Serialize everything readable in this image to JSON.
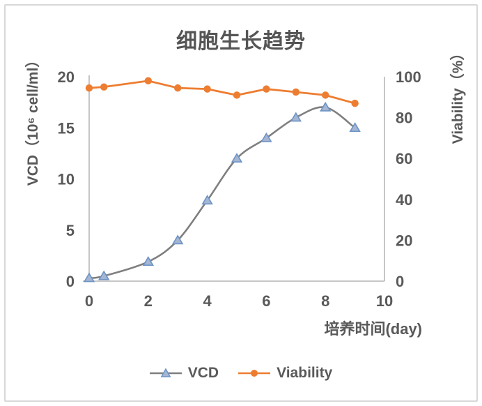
{
  "chart_data": {
    "type": "line",
    "title": "细胞生长趋势",
    "xlabel": "培养时间(day)",
    "ylabel_left": "VCD（10⁶ cell/ml）",
    "ylabel_right": "Viability（%）",
    "x": [
      0,
      0.5,
      2,
      3,
      4,
      5,
      6,
      7,
      8,
      9
    ],
    "series": [
      {
        "name": "VCD",
        "axis": "left",
        "marker": "triangle",
        "color": "#7f7f7f",
        "marker_fill": "#a4b6d3",
        "marker_stroke": "#6d93c5",
        "smooth": true,
        "values": [
          0.3,
          0.5,
          1.9,
          4,
          7.9,
          12,
          14,
          16,
          17,
          15
        ]
      },
      {
        "name": "Viability",
        "axis": "right",
        "marker": "circle",
        "color": "#ed7d31",
        "marker_fill": "#ed7d31",
        "marker_stroke": "#ed7d31",
        "smooth": false,
        "values": [
          94.5,
          95,
          98,
          94.5,
          94,
          91,
          94,
          92.5,
          91,
          87
        ]
      }
    ],
    "x_ticks": [
      0,
      2,
      4,
      6,
      8,
      10
    ],
    "y_ticks_left": [
      0,
      5,
      10,
      15,
      20
    ],
    "y_ticks_right": [
      0,
      20,
      40,
      60,
      80,
      100
    ],
    "xlim": [
      0,
      10
    ],
    "ylim_left": [
      0,
      20
    ],
    "ylim_right": [
      0,
      100
    ],
    "grid": false,
    "legend_position": "bottom",
    "axis_color": "#bfbfbf",
    "text_color": "#595959",
    "background_color": "#ffffff",
    "border_color": "#d8d8d8"
  }
}
